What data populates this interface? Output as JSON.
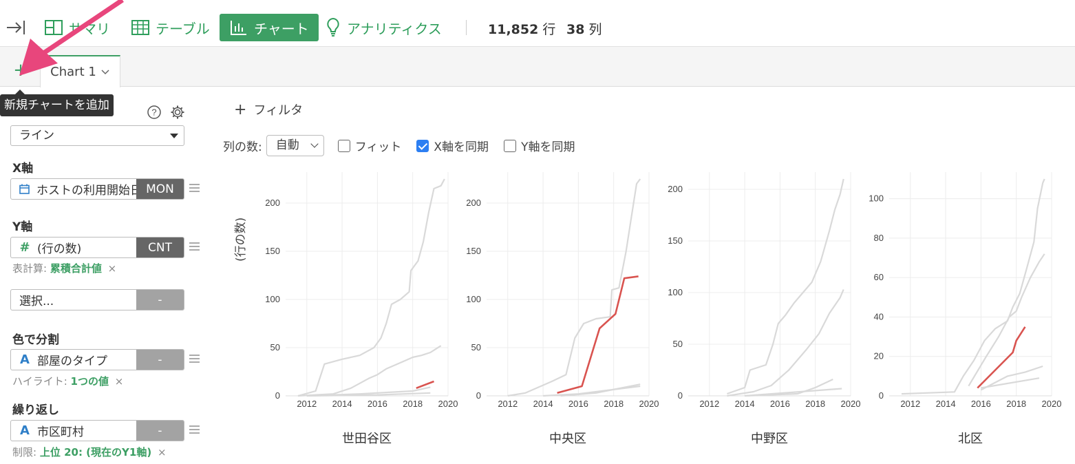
{
  "toolbar": {
    "items": [
      {
        "label": "サマリ",
        "icon": "summary-icon"
      },
      {
        "label": "テーブル",
        "icon": "table-icon"
      },
      {
        "label": "チャート",
        "icon": "bar-chart-icon",
        "active": true
      },
      {
        "label": "アナリティクス",
        "icon": "lightbulb-icon"
      }
    ],
    "rows_count": "11,852",
    "rows_unit": "行",
    "cols_count": "38",
    "cols_unit": "列",
    "collapse_icon": "collapse-sidebar-icon"
  },
  "tabs": {
    "add_label": "+",
    "add_tooltip": "新規チャートを追加",
    "chart_tab": "Chart 1"
  },
  "panel": {
    "chart_type": "ライン",
    "x_label": "X軸",
    "x_field": "ホストの利用開始日",
    "x_agg": "MON",
    "y_label": "Y軸",
    "y_field": "(行の数)",
    "y_agg": "CNT",
    "y_sub_prefix": "表計算:",
    "y_sub_value": "累積合計値",
    "select_placeholder": "選択...",
    "select_agg": "-",
    "color_label": "色で分割",
    "color_field": "部屋のタイプ",
    "color_agg": "-",
    "color_sub_prefix": "ハイライト:",
    "color_sub_value": "1つの値",
    "repeat_label": "繰り返し",
    "repeat_field": "市区町村",
    "repeat_agg": "-",
    "repeat_sub_prefix": "制限:",
    "repeat_sub_value": "上位 20: (現在のY1軸)",
    "close_x": "×"
  },
  "main": {
    "filter_label": "フィルタ",
    "cols_label": "列の数:",
    "cols_value": "自動",
    "fit_label": "フィット",
    "fit_checked": false,
    "sync_x_label": "X軸を同期",
    "sync_x_checked": true,
    "sync_y_label": "Y軸を同期",
    "sync_y_checked": false
  },
  "colors": {
    "accent": "#3d9f64",
    "highlight": "#d9534f",
    "background_lines": "#d9d9d9",
    "arrow": "#e8467c"
  },
  "chart_data": [
    {
      "type": "line",
      "title": "世田谷区",
      "ylabel": "(行の数)",
      "xlim": [
        2010.8,
        2020
      ],
      "xticks": [
        2012,
        2014,
        2016,
        2018,
        2020
      ],
      "ylim": [
        0,
        225
      ],
      "yticks": [
        0,
        50,
        100,
        150,
        200
      ],
      "series": [
        {
          "highlight": false,
          "points": [
            [
              2011.5,
              0
            ],
            [
              2012.5,
              5
            ],
            [
              2013,
              33
            ],
            [
              2014,
              38
            ],
            [
              2015,
              42
            ],
            [
              2015.8,
              50
            ],
            [
              2016.2,
              60
            ],
            [
              2016.5,
              75
            ],
            [
              2016.8,
              95
            ],
            [
              2017.3,
              100
            ],
            [
              2017.8,
              108
            ],
            [
              2017.9,
              130
            ],
            [
              2018.3,
              140
            ],
            [
              2018.6,
              160
            ],
            [
              2018.9,
              190
            ],
            [
              2019.2,
              215
            ],
            [
              2019.6,
              218
            ],
            [
              2019.8,
              225
            ]
          ]
        },
        {
          "highlight": false,
          "points": [
            [
              2011.5,
              0
            ],
            [
              2013.5,
              2
            ],
            [
              2014.5,
              8
            ],
            [
              2015.5,
              18
            ],
            [
              2016,
              22
            ],
            [
              2016.5,
              28
            ],
            [
              2017,
              32
            ],
            [
              2017.5,
              36
            ],
            [
              2018,
              40
            ],
            [
              2018.5,
              42
            ],
            [
              2019,
              45
            ],
            [
              2019.6,
              52
            ]
          ]
        },
        {
          "highlight": false,
          "points": [
            [
              2012,
              0
            ],
            [
              2015,
              2
            ],
            [
              2017,
              4
            ],
            [
              2018,
              5
            ],
            [
              2019,
              9
            ]
          ]
        },
        {
          "highlight": false,
          "points": [
            [
              2012,
              0
            ],
            [
              2016,
              1
            ],
            [
              2019,
              3
            ]
          ]
        },
        {
          "highlight": true,
          "points": [
            [
              2018.2,
              8
            ],
            [
              2019.2,
              15
            ]
          ]
        }
      ]
    },
    {
      "type": "line",
      "title": "中央区",
      "xlim": [
        2010.8,
        2020
      ],
      "xticks": [
        2012,
        2014,
        2016,
        2018,
        2020
      ],
      "ylim": [
        0,
        225
      ],
      "yticks": [
        0,
        50,
        100,
        150,
        200
      ],
      "series": [
        {
          "highlight": false,
          "points": [
            [
              2012,
              0
            ],
            [
              2013,
              3
            ],
            [
              2014.5,
              15
            ],
            [
              2015.3,
              22
            ],
            [
              2015.8,
              60
            ],
            [
              2016.3,
              75
            ],
            [
              2017,
              80
            ],
            [
              2017.8,
              82
            ],
            [
              2017.9,
              110
            ],
            [
              2018.3,
              112
            ],
            [
              2018.7,
              150
            ],
            [
              2019,
              185
            ],
            [
              2019.3,
              220
            ],
            [
              2019.5,
              225
            ]
          ]
        },
        {
          "highlight": false,
          "points": [
            [
              2014,
              0
            ],
            [
              2016,
              2
            ],
            [
              2019.5,
              10
            ]
          ]
        },
        {
          "highlight": false,
          "points": [
            [
              2015,
              0
            ],
            [
              2017,
              3
            ],
            [
              2019.5,
              12
            ]
          ]
        },
        {
          "highlight": true,
          "points": [
            [
              2014.8,
              3
            ],
            [
              2016.2,
              10
            ],
            [
              2017.2,
              70
            ],
            [
              2018.1,
              85
            ],
            [
              2018.6,
              122
            ],
            [
              2019.4,
              124
            ]
          ]
        }
      ]
    },
    {
      "type": "line",
      "title": "中野区",
      "xlim": [
        2010.8,
        2020
      ],
      "xticks": [
        2012,
        2014,
        2016,
        2018,
        2020
      ],
      "ylim": [
        0,
        210
      ],
      "yticks": [
        0,
        50,
        100,
        150,
        200
      ],
      "series": [
        {
          "highlight": false,
          "points": [
            [
              2013,
              2
            ],
            [
              2014,
              8
            ],
            [
              2014.3,
              25
            ],
            [
              2015.2,
              30
            ],
            [
              2015.6,
              50
            ],
            [
              2015.9,
              70
            ],
            [
              2016.3,
              78
            ],
            [
              2016.8,
              90
            ],
            [
              2017.3,
              100
            ],
            [
              2017.8,
              110
            ],
            [
              2018.3,
              130
            ],
            [
              2018.8,
              160
            ],
            [
              2019.1,
              180
            ],
            [
              2019.4,
              195
            ],
            [
              2019.6,
              210
            ]
          ]
        },
        {
          "highlight": false,
          "points": [
            [
              2013,
              0
            ],
            [
              2014.5,
              4
            ],
            [
              2015.5,
              10
            ],
            [
              2016.5,
              25
            ],
            [
              2017.5,
              45
            ],
            [
              2018.2,
              60
            ],
            [
              2018.8,
              80
            ],
            [
              2019.4,
              95
            ],
            [
              2019.6,
              103
            ]
          ]
        },
        {
          "highlight": false,
          "points": [
            [
              2014,
              0
            ],
            [
              2017,
              2
            ],
            [
              2018,
              8
            ],
            [
              2019,
              16
            ]
          ]
        },
        {
          "highlight": false,
          "points": [
            [
              2014,
              0
            ],
            [
              2019.5,
              7
            ]
          ]
        }
      ]
    },
    {
      "type": "line",
      "title": "北区",
      "xlim": [
        2010.8,
        2020
      ],
      "xticks": [
        2012,
        2014,
        2016,
        2018,
        2020
      ],
      "ylim": [
        0,
        110
      ],
      "yticks": [
        0,
        20,
        40,
        60,
        80,
        100
      ],
      "series": [
        {
          "highlight": false,
          "points": [
            [
              2011.5,
              1
            ],
            [
              2014.5,
              2
            ],
            [
              2015,
              10
            ],
            [
              2015.6,
              18
            ],
            [
              2016.2,
              28
            ],
            [
              2016.8,
              34
            ],
            [
              2017.5,
              38
            ],
            [
              2017.8,
              45
            ],
            [
              2018.2,
              52
            ],
            [
              2018.6,
              65
            ],
            [
              2019,
              78
            ],
            [
              2019.2,
              95
            ],
            [
              2019.5,
              108
            ],
            [
              2019.6,
              110
            ]
          ]
        },
        {
          "highlight": false,
          "points": [
            [
              2015.3,
              5
            ],
            [
              2016.3,
              20
            ],
            [
              2017,
              30
            ],
            [
              2017.6,
              40
            ],
            [
              2018,
              43
            ],
            [
              2018.3,
              50
            ],
            [
              2018.8,
              60
            ],
            [
              2019.3,
              68
            ],
            [
              2019.6,
              72
            ]
          ]
        },
        {
          "highlight": false,
          "points": [
            [
              2016,
              3
            ],
            [
              2017.5,
              10
            ],
            [
              2018.5,
              12
            ],
            [
              2019.5,
              15
            ]
          ]
        },
        {
          "highlight": false,
          "points": [
            [
              2016,
              4
            ],
            [
              2019.3,
              9
            ]
          ]
        },
        {
          "highlight": true,
          "points": [
            [
              2015.8,
              4
            ],
            [
              2017.8,
              22
            ],
            [
              2018,
              28
            ],
            [
              2018.5,
              35
            ]
          ]
        }
      ]
    }
  ]
}
